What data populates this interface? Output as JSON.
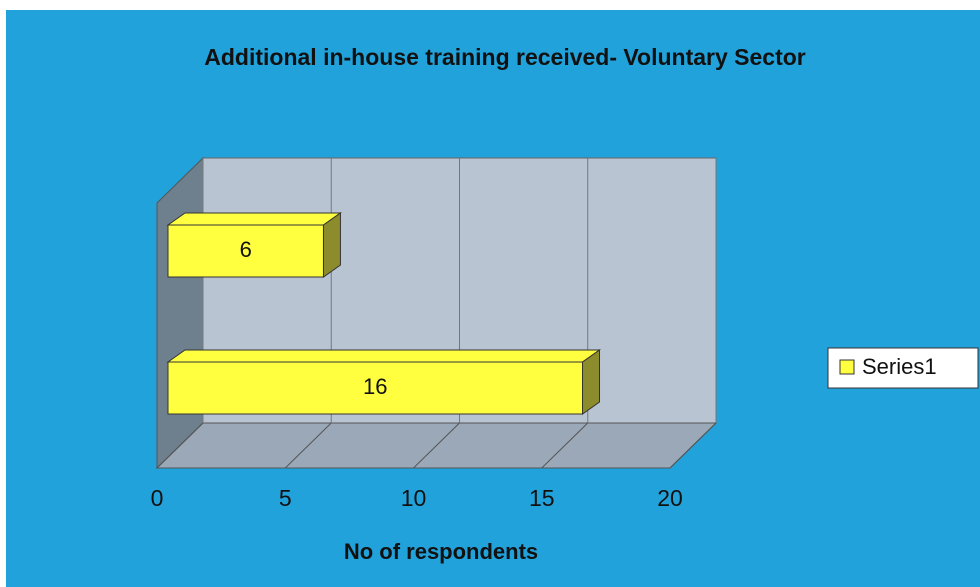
{
  "chart_data": {
    "type": "bar",
    "orientation": "horizontal",
    "title": "Additional in-house training received- Voluntary Sector",
    "x_label": "No of respondents",
    "categories": [
      null,
      null
    ],
    "series": [
      {
        "name": "Series1",
        "color": "#ffff40",
        "values": [
          6,
          16
        ]
      }
    ],
    "xlim": [
      0,
      20
    ],
    "xticks": [
      0,
      5,
      10,
      15,
      20
    ],
    "grid": true,
    "legend": "right"
  }
}
